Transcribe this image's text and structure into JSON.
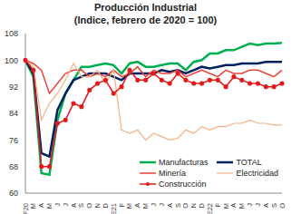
{
  "chart_data": {
    "type": "line",
    "title": "Producción Industrial",
    "subtitle": "(Indice, febrero de 2020 = 100)",
    "categories": [
      "F20",
      "M",
      "A",
      "M",
      "J",
      "J",
      "A",
      "S",
      "O",
      "N",
      "D",
      "E21",
      "F",
      "M",
      "A",
      "M",
      "J",
      "J",
      "A",
      "S",
      "O",
      "N",
      "D",
      "E22",
      "F",
      "M",
      "A",
      "M",
      "J",
      "J",
      "A",
      "S",
      "O"
    ],
    "series": [
      {
        "name": "Manufacturas",
        "color": "#00b050",
        "values": [
          100,
          95,
          66,
          65.5,
          82,
          90,
          94,
          98,
          98,
          98.5,
          99,
          98.5,
          96,
          99,
          99.5,
          98,
          98,
          98.5,
          99,
          99,
          97,
          99.5,
          100,
          102,
          102,
          103,
          103,
          104,
          105,
          104.5,
          105,
          105,
          105.2
        ]
      },
      {
        "name": "TOTAL",
        "color": "#002060",
        "values": [
          100,
          96,
          72,
          71,
          85,
          90,
          94,
          95,
          96,
          96,
          96,
          95,
          94,
          96,
          96,
          96,
          96,
          97,
          96.5,
          97,
          96,
          97,
          98,
          97.5,
          98,
          98.5,
          98.5,
          99,
          99,
          99,
          99.5,
          99.5,
          99.5
        ]
      },
      {
        "name": "Minería",
        "color": "#e8433a",
        "values": [
          100,
          99,
          97,
          90,
          93,
          96,
          97,
          97,
          95,
          96,
          95,
          97,
          95,
          96,
          98,
          95,
          97,
          96,
          96,
          97,
          95,
          96,
          97,
          96,
          95,
          97,
          96,
          96,
          97,
          97,
          96,
          95,
          97
        ]
      },
      {
        "name": "Electricidad",
        "color": "#f4b183",
        "values": [
          100,
          98,
          82,
          87,
          90,
          94,
          99,
          95,
          95,
          97,
          93,
          97,
          79,
          78,
          79,
          76,
          78,
          77,
          76,
          76.5,
          79,
          78,
          80,
          79,
          80,
          80,
          81,
          81,
          82,
          81,
          81,
          80.5,
          80.5
        ]
      },
      {
        "name": "Construcción",
        "color": "#e31a1c",
        "marker": "circle",
        "values": [
          100,
          97,
          68,
          68,
          81,
          82,
          87,
          86,
          91,
          93,
          94,
          90,
          92,
          97,
          94,
          94,
          96,
          94,
          93,
          96,
          94,
          93,
          93,
          94,
          94,
          92,
          95,
          94,
          93,
          93,
          92,
          92,
          93
        ]
      }
    ],
    "ylim": [
      60,
      108
    ],
    "yticks": [
      60,
      68,
      76,
      84,
      92,
      100,
      108
    ],
    "grid": false,
    "legend": "lower right"
  }
}
